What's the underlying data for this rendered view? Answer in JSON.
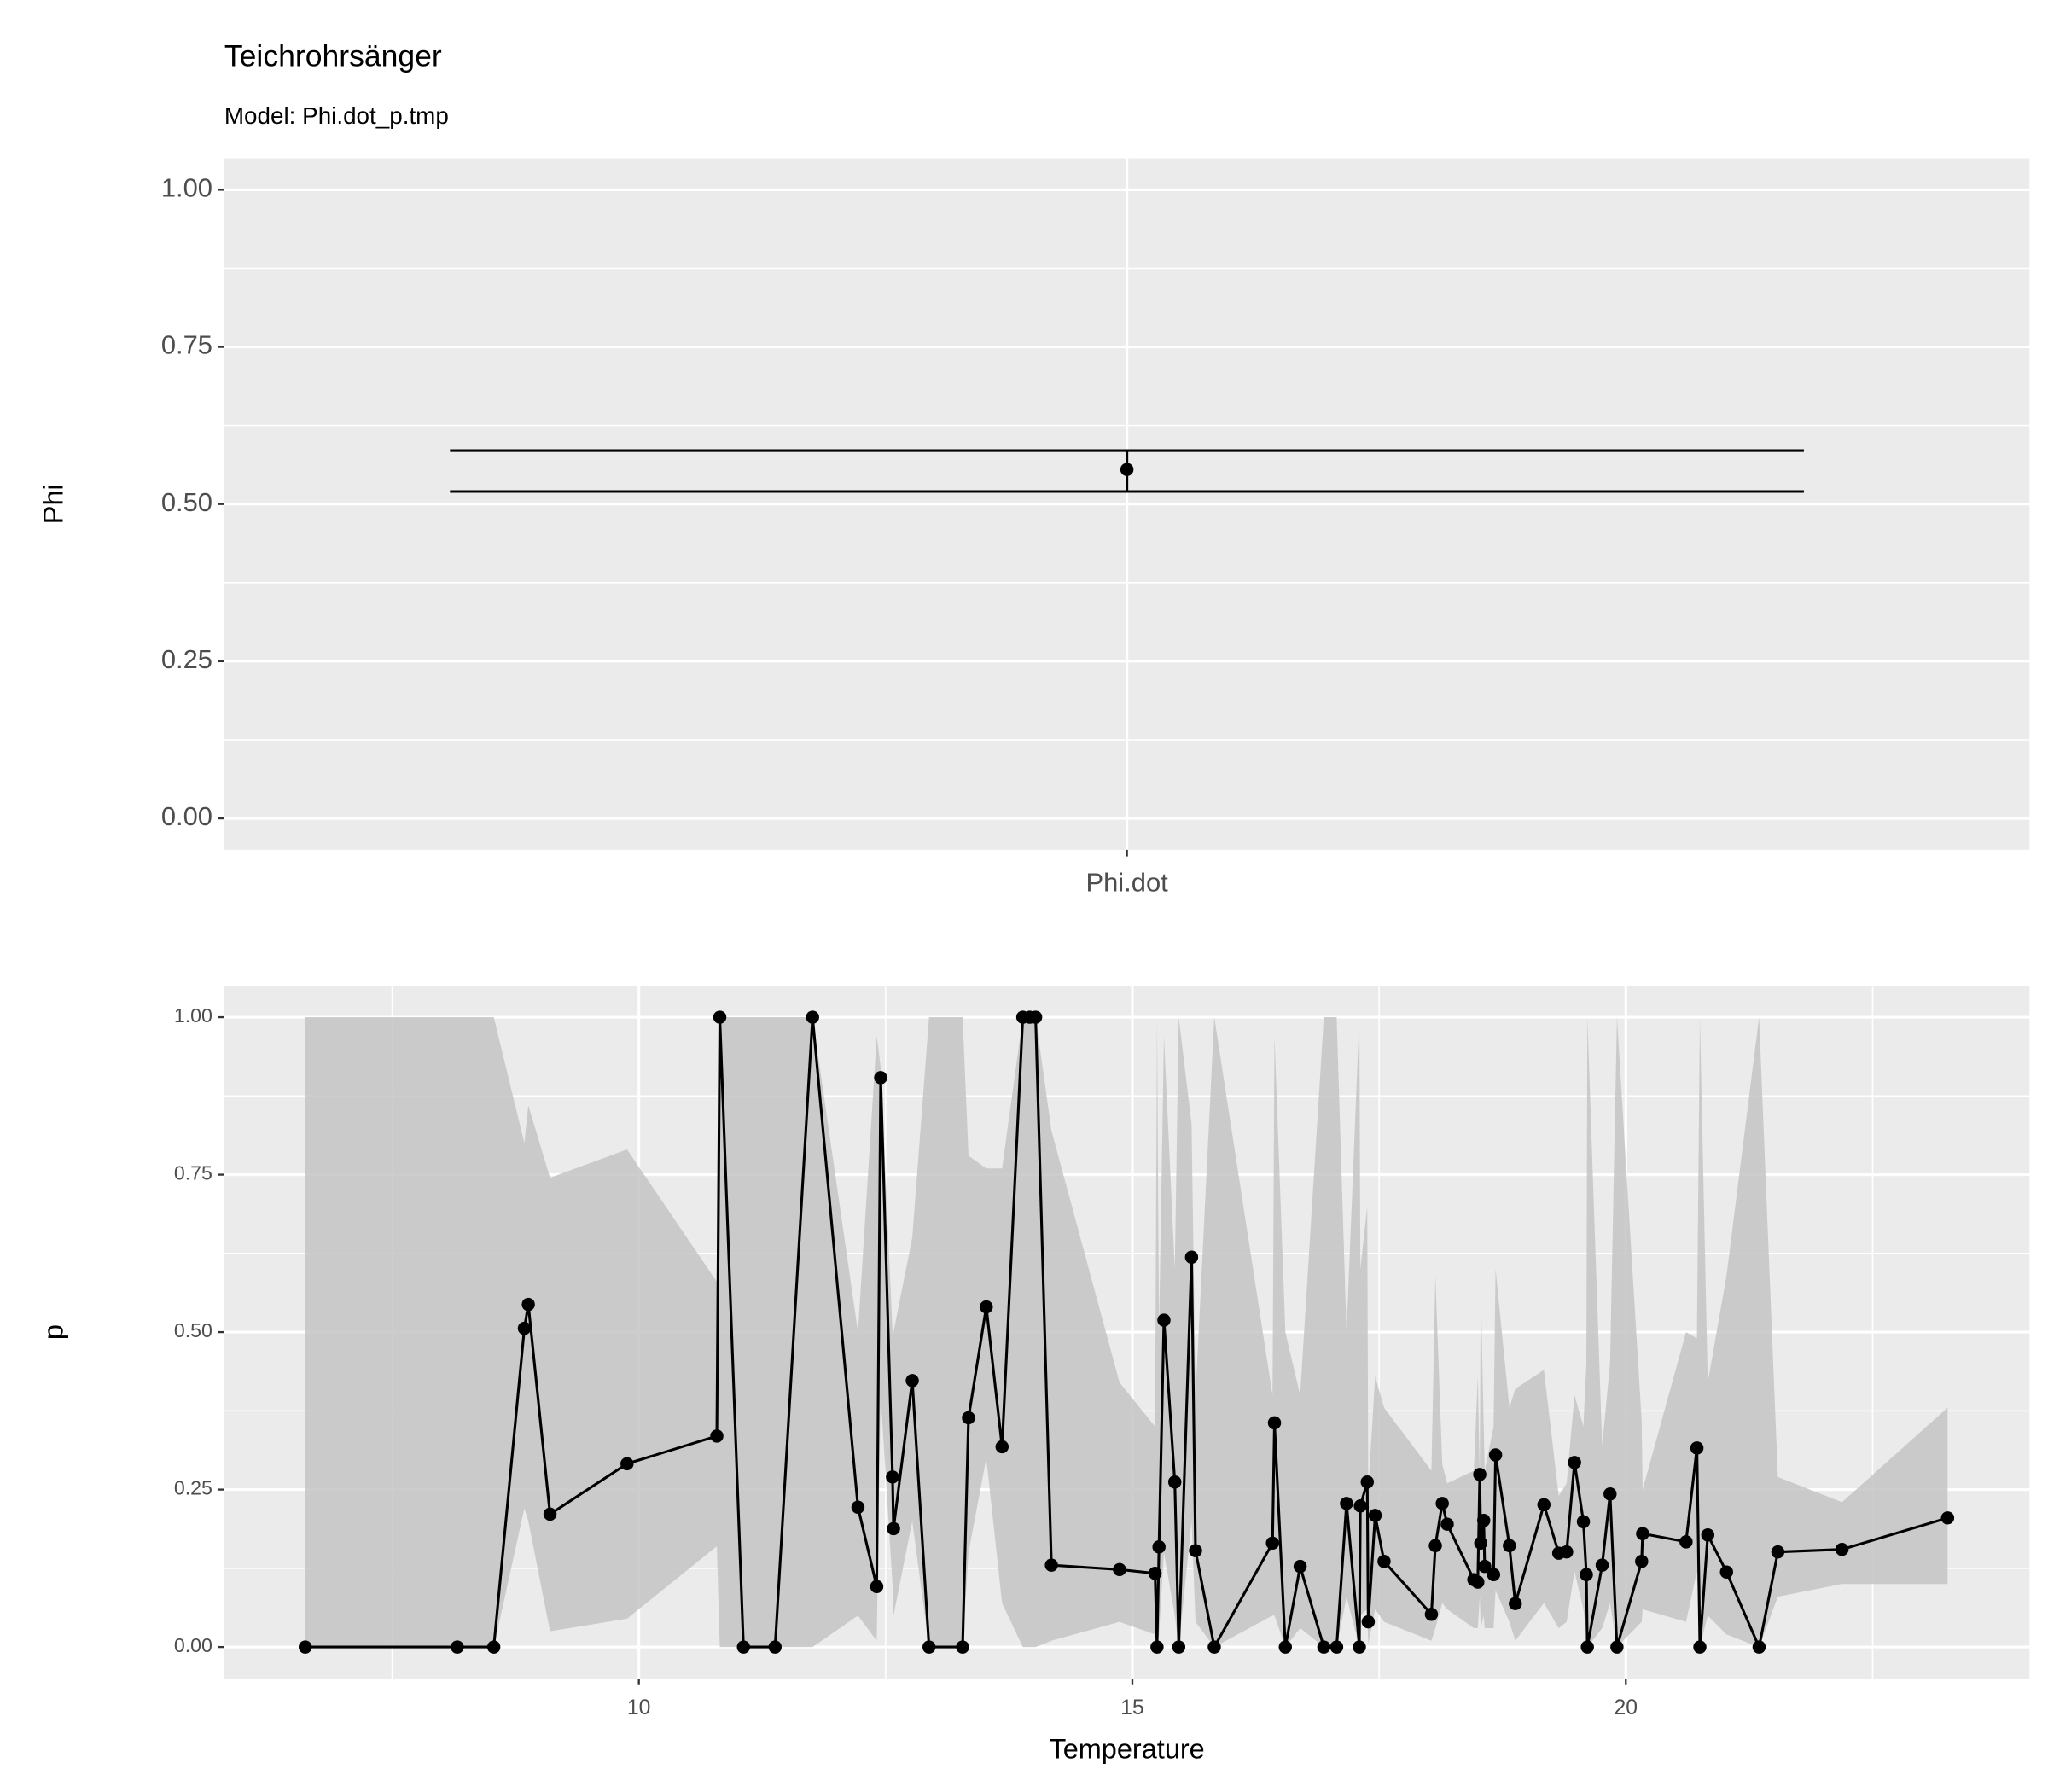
{
  "title": "Teichrohrsänger",
  "subtitle": "Model: Phi.dot_p.tmp",
  "chart_data": [
    {
      "type": "errorbar",
      "ylabel": "Phi",
      "categories": [
        "Phi.dot"
      ],
      "values": [
        0.555
      ],
      "lower": [
        0.52
      ],
      "upper": [
        0.585
      ],
      "color": "#000000",
      "grid": true,
      "ylim": [
        -0.05,
        1.05
      ],
      "yticks": [
        {
          "value": 0,
          "label": "0.00"
        },
        {
          "value": 0.25,
          "label": "0.25"
        },
        {
          "value": 0.5,
          "label": "0.50"
        },
        {
          "value": 0.75,
          "label": "0.75"
        },
        {
          "value": 1,
          "label": "1.00"
        }
      ]
    },
    {
      "type": "line",
      "xlabel": "Temperature",
      "ylabel": "p",
      "color": "#000000",
      "ribbon_color": "#c4c4c4",
      "grid": true,
      "xlim": [
        5.8,
        24.09
      ],
      "xticks": [
        10,
        15,
        20
      ],
      "ylim": [
        -0.05,
        1.05
      ],
      "yticks": [
        {
          "value": 0,
          "label": "0.00"
        },
        {
          "value": 0.25,
          "label": "0.25"
        },
        {
          "value": 0.5,
          "label": "0.50"
        },
        {
          "value": 0.75,
          "label": "0.75"
        },
        {
          "value": 1,
          "label": "1.00"
        }
      ],
      "x": [
        6.62,
        8.16,
        8.53,
        8.84,
        8.88,
        9.1,
        9.88,
        10.79,
        10.82,
        11.06,
        11.38,
        11.76,
        12.22,
        12.41,
        12.45,
        12.57,
        12.58,
        12.77,
        12.94,
        13.28,
        13.34,
        13.52,
        13.68,
        13.89,
        13.96,
        14.02,
        14.18,
        14.87,
        15.23,
        15.25,
        15.27,
        15.32,
        15.43,
        15.47,
        15.6,
        15.64,
        15.83,
        16.42,
        16.44,
        16.55,
        16.7,
        16.94,
        17.07,
        17.17,
        17.3,
        17.31,
        17.38,
        17.39,
        17.46,
        17.55,
        18.03,
        18.07,
        18.14,
        18.19,
        18.46,
        18.5,
        18.52,
        18.53,
        18.56,
        18.57,
        18.66,
        18.68,
        18.82,
        18.88,
        19.17,
        19.32,
        19.4,
        19.48,
        19.57,
        19.6,
        19.61,
        19.76,
        19.84,
        19.91,
        20.16,
        20.17,
        20.61,
        20.72,
        20.75,
        20.83,
        21.02,
        21.35,
        21.54,
        22.19,
        23.26
      ],
      "values": [
        0,
        0,
        0,
        0.506,
        0.544,
        0.211,
        0.291,
        0.335,
        1,
        0,
        0,
        1,
        0.222,
        0.096,
        0.904,
        0.27,
        0.188,
        0.423,
        0,
        0,
        0.364,
        0.54,
        0.318,
        1,
        1,
        1,
        0.13,
        0.123,
        0.117,
        0,
        0.159,
        0.519,
        0.262,
        0,
        0.619,
        0.153,
        0,
        0.165,
        0.356,
        0,
        0.128,
        0,
        0,
        0.228,
        0,
        0.224,
        0.262,
        0.04,
        0.209,
        0.136,
        0.052,
        0.161,
        0.228,
        0.195,
        0.107,
        0.103,
        0.274,
        0.165,
        0.201,
        0.128,
        0.115,
        0.305,
        0.161,
        0.069,
        0.226,
        0.149,
        0.151,
        0.293,
        0.199,
        0.115,
        0,
        0.13,
        0.243,
        0,
        0.136,
        0.18,
        0.167,
        0.316,
        0,
        0.178,
        0.119,
        0,
        0.151,
        0.155,
        0.205
      ],
      "lower": [
        0,
        0,
        0,
        0.22,
        0.2,
        0.025,
        0.045,
        0.16,
        0,
        0,
        0,
        0,
        0.05,
        0.01,
        0.4,
        0.1,
        0.05,
        0.2,
        0,
        0,
        0.15,
        0.3,
        0.07,
        0,
        0,
        0,
        0.01,
        0.04,
        0.02,
        0,
        0.02,
        0.15,
        0.05,
        0,
        0.2,
        0.04,
        0,
        0.05,
        0.05,
        0,
        0.03,
        0,
        0,
        0.08,
        0,
        0.05,
        0.06,
        0.005,
        0.06,
        0.04,
        0.01,
        0.03,
        0.07,
        0.06,
        0.03,
        0.03,
        0.08,
        0.03,
        0.05,
        0.03,
        0.03,
        0.09,
        0.04,
        0.01,
        0.07,
        0.03,
        0.04,
        0.12,
        0.06,
        0.02,
        0,
        0.03,
        0.07,
        0,
        0.04,
        0.06,
        0.04,
        0.12,
        0,
        0.05,
        0.02,
        0,
        0.08,
        0.1,
        0.1
      ],
      "upper": [
        1,
        1,
        1,
        0.8,
        0.86,
        0.745,
        0.79,
        0.58,
        1,
        1,
        1,
        1,
        0.5,
        0.97,
        0.92,
        0.5,
        0.5,
        0.65,
        1,
        1,
        0.78,
        0.76,
        0.76,
        1,
        1,
        1,
        0.82,
        0.42,
        0.35,
        1,
        0.5,
        0.97,
        0.6,
        1,
        0.83,
        0.4,
        1,
        0.4,
        0.97,
        0.5,
        0.4,
        1,
        1,
        0.5,
        1,
        0.6,
        0.7,
        0.25,
        0.43,
        0.38,
        0.28,
        0.59,
        0.29,
        0.26,
        0.28,
        0.43,
        0.27,
        0.57,
        0.35,
        0.28,
        0.35,
        0.6,
        0.38,
        0.41,
        0.44,
        0.24,
        0.26,
        0.4,
        0.35,
        0.45,
        1,
        0.32,
        0.45,
        1,
        0.36,
        0.25,
        0.5,
        0.49,
        1,
        0.42,
        0.59,
        1,
        0.27,
        0.23,
        0.38
      ]
    }
  ]
}
